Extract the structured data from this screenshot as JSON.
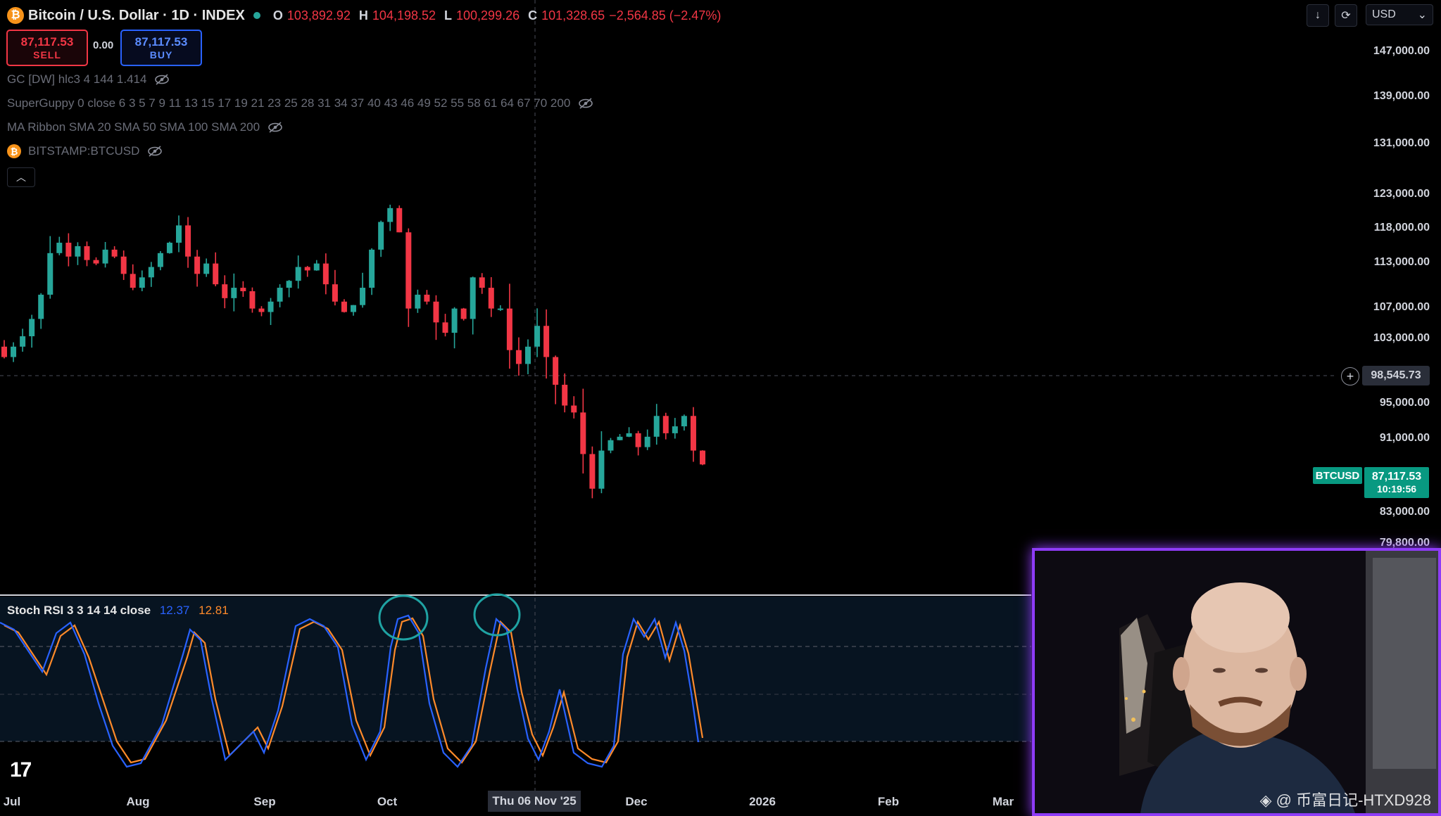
{
  "header": {
    "symbol_title": "Bitcoin / U.S. Dollar · 1D · INDEX",
    "coin_glyph": "₿",
    "ohlc": [
      {
        "key": "O",
        "value": "103,892.92"
      },
      {
        "key": "H",
        "value": "104,198.52"
      },
      {
        "key": "L",
        "value": "100,299.26"
      },
      {
        "key": "C",
        "value": "101,328.65"
      }
    ],
    "change": "−2,564.85 (−2.47%)"
  },
  "trade": {
    "sell_price": "87,117.53",
    "sell_label": "SELL",
    "spread": "0.00",
    "buy_price": "87,117.53",
    "buy_label": "BUY"
  },
  "indicators": [
    {
      "label": "GC [DW] hlc3 4 144 1.414"
    },
    {
      "label": "SuperGuppy 0 close 6 3 5 7 9 11 13 15 17 19 21 23 25 28 31 34 37 40 43 46 49 52 55 58 61 64 67 70 200"
    },
    {
      "label": "MA Ribbon SMA 20 SMA 50 SMA 100 SMA 200"
    },
    {
      "label": "BITSTAMP:BTCUSD"
    }
  ],
  "toolbar": {
    "currency": "USD"
  },
  "price_axis": {
    "labels": [
      "147,000.00",
      "139,000.00",
      "131,000.00",
      "123,000.00",
      "118,000.00",
      "113,000.00",
      "107,000.00",
      "103,000.00",
      "95,000.00",
      "91,000.00",
      "83,000.00",
      "79,800.00"
    ],
    "crosshair_price": "98,545.73",
    "symbol_tag": "BTCUSD",
    "last_price": "87,117.53",
    "countdown": "10:19:56"
  },
  "stoch": {
    "name": "Stoch RSI 3 3 14 14 close",
    "k_value": "12.37",
    "d_value": "12.81",
    "k_color": "#2962ff",
    "d_color": "#ff8a2a"
  },
  "time_axis": {
    "labels": [
      "Jul",
      "Aug",
      "Sep",
      "Oct",
      "Dec",
      "2026",
      "Feb",
      "Mar"
    ],
    "crosshair_date": "Thu 06 Nov '25"
  },
  "colors": {
    "up": "#26a69a",
    "down": "#f23645",
    "highlight_circle": "#1fa3a3",
    "webcam_border": "#8e3cf7"
  },
  "chart_data": {
    "type": "candlestick",
    "approx_closes_usd": [
      103000,
      104500,
      106000,
      108500,
      112000,
      118000,
      119500,
      117500,
      119000,
      117000,
      116500,
      118500,
      117500,
      115000,
      113000,
      114500,
      116000,
      118000,
      119500,
      122000,
      117500,
      115000,
      116500,
      113500,
      111500,
      113000,
      112500,
      110000,
      109500,
      111000,
      113000,
      114000,
      116000,
      115500,
      116500,
      113500,
      111000,
      109500,
      110500,
      113000,
      118500,
      122500,
      124500,
      121000,
      110000,
      112000,
      111000,
      108000,
      106500,
      110000,
      108500,
      114500,
      113000,
      110000,
      110000,
      104000,
      102000,
      104500,
      107500,
      103000,
      99000,
      96000,
      95000,
      89000,
      84000,
      89500,
      91000,
      91500,
      92000,
      90000,
      91500,
      94500,
      92000,
      93000,
      94500,
      89500,
      87500
    ]
  },
  "overlay": {
    "watermark": "◈ @ 币富日记-HTXD928"
  }
}
